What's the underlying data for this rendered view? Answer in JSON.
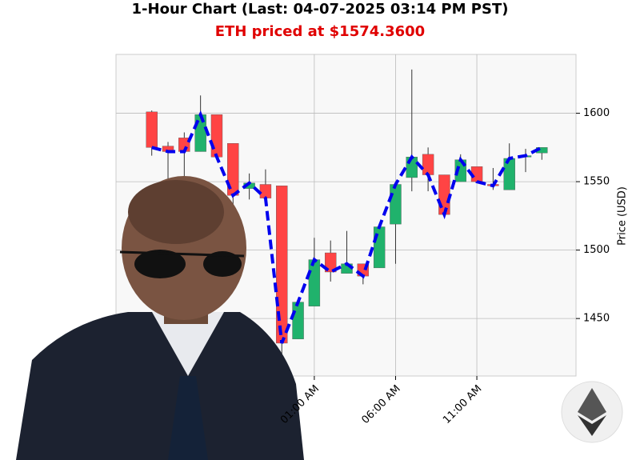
{
  "chart_data": {
    "type": "candlestick",
    "title": "1-Hour Chart (Last: 04-07-2025 03:14 PM PST)",
    "subtitle": "ETH priced at $1574.3600",
    "y_label": "Price (USD)",
    "categories": [
      null,
      null,
      null,
      null,
      null,
      null,
      null,
      null,
      null,
      null,
      null,
      null,
      null,
      null,
      null,
      null,
      null,
      null,
      null,
      null,
      null,
      null,
      null,
      null,
      null
    ],
    "candles": [
      {
        "open": 1601,
        "high": 1602,
        "low": 1569,
        "close": 1575
      },
      {
        "open": 1576,
        "high": 1579,
        "low": 1548,
        "close": 1572
      },
      {
        "open": 1582,
        "high": 1586,
        "low": 1554,
        "close": 1572
      },
      {
        "open": 1572,
        "high": 1613,
        "low": 1572,
        "close": 1599
      },
      {
        "open": 1599,
        "high": 1599,
        "low": 1568,
        "close": 1568
      },
      {
        "open": 1578,
        "high": 1578,
        "low": 1531,
        "close": 1540
      },
      {
        "open": 1545,
        "high": 1556,
        "low": 1537,
        "close": 1549
      },
      {
        "open": 1548,
        "high": 1559,
        "low": 1537,
        "close": 1538
      },
      {
        "open": 1547,
        "high": 1547,
        "low": 1418,
        "close": 1432
      },
      {
        "open": 1435,
        "high": 1462,
        "low": 1435,
        "close": 1462
      },
      {
        "open": 1459,
        "high": 1509,
        "low": 1459,
        "close": 1493
      },
      {
        "open": 1498,
        "high": 1507,
        "low": 1477,
        "close": 1484
      },
      {
        "open": 1483,
        "high": 1514,
        "low": 1483,
        "close": 1490
      },
      {
        "open": 1490,
        "high": 1490,
        "low": 1475,
        "close": 1481
      },
      {
        "open": 1487,
        "high": 1517,
        "low": 1487,
        "close": 1517
      },
      {
        "open": 1519,
        "high": 1548,
        "low": 1490,
        "close": 1548
      },
      {
        "open": 1553,
        "high": 1632,
        "low": 1543,
        "close": 1568
      },
      {
        "open": 1570,
        "high": 1575,
        "low": 1543,
        "close": 1555
      },
      {
        "open": 1555,
        "high": 1555,
        "low": 1526,
        "close": 1526
      },
      {
        "open": 1550,
        "high": 1570,
        "low": 1550,
        "close": 1566
      },
      {
        "open": 1561,
        "high": 1561,
        "low": 1550,
        "close": 1550
      },
      {
        "open": 1548,
        "high": 1560,
        "low": 1544,
        "close": 1547
      },
      {
        "open": 1544,
        "high": 1578,
        "low": 1544,
        "close": 1567
      },
      {
        "open": 1568,
        "high": 1574,
        "low": 1557,
        "close": 1569
      },
      {
        "open": 1571,
        "high": 1575,
        "low": 1566,
        "close": 1575
      }
    ],
    "up_color": "#20b26c",
    "down_color": "#ff4444",
    "line_color": "#0000ee",
    "xlim": [
      -2.2,
      26.1
    ],
    "xticks": [
      {
        "value": 10,
        "label": "01:00 AM"
      },
      {
        "value": 15,
        "label": "06:00 AM"
      },
      {
        "value": 20,
        "label": "11:00 AM"
      }
    ],
    "ylim": [
      1408,
      1643
    ],
    "yticks": [
      1450,
      1500,
      1550,
      1600
    ],
    "grid": true
  }
}
